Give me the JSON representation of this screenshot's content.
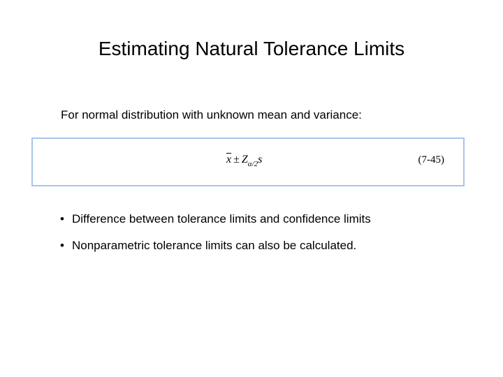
{
  "slide": {
    "title": "Estimating Natural Tolerance Limits",
    "intro": "For normal distribution with unknown mean and variance:"
  },
  "equation": {
    "xbar": "x",
    "plus_minus": "±",
    "z": "Z",
    "subscript": "α/2",
    "s": "s",
    "number": "(7-45)"
  },
  "bullets": [
    {
      "marker": "•",
      "text": "Difference between tolerance limits and confidence limits"
    },
    {
      "marker": "•",
      "text": "Nonparametric tolerance limits can also be calculated."
    }
  ]
}
